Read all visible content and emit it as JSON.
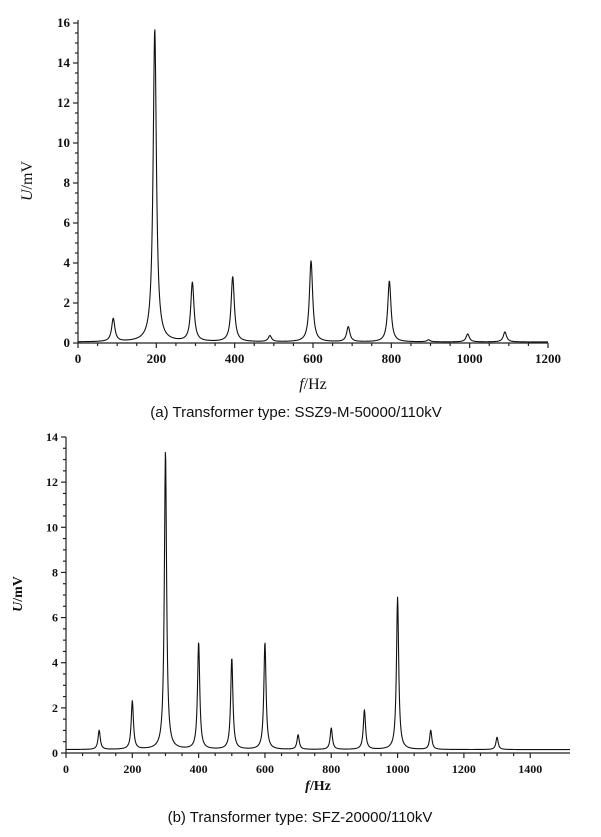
{
  "chart_data": [
    {
      "type": "line",
      "caption": "(a) Transformer type: SSZ9-M-50000/110kV",
      "xlabel_var": "f",
      "xlabel_unit": "/Hz",
      "ylabel_var": "U",
      "ylabel_unit": "/mV",
      "xlim": [
        0,
        1200
      ],
      "ylim": [
        0,
        16
      ],
      "xticks": [
        0,
        200,
        400,
        600,
        800,
        1000,
        1200
      ],
      "yticks": [
        0,
        2,
        4,
        6,
        8,
        10,
        12,
        14,
        16
      ],
      "baseline": 0.05,
      "peaks": [
        {
          "f": 90,
          "u": 1.2
        },
        {
          "f": 196,
          "u": 15.7
        },
        {
          "f": 292,
          "u": 3.0
        },
        {
          "f": 395,
          "u": 3.3
        },
        {
          "f": 490,
          "u": 0.35
        },
        {
          "f": 595,
          "u": 4.1
        },
        {
          "f": 690,
          "u": 0.8
        },
        {
          "f": 795,
          "u": 3.1
        },
        {
          "f": 895,
          "u": 0.15
        },
        {
          "f": 995,
          "u": 0.45
        },
        {
          "f": 1090,
          "u": 0.55
        }
      ]
    },
    {
      "type": "line",
      "caption": "(b) Transformer type: SFZ-20000/110kV",
      "xlabel_var": "f",
      "xlabel_unit": "/Hz",
      "ylabel_var": "U",
      "ylabel_unit": "/mV",
      "xlim": [
        0,
        1520
      ],
      "ylim": [
        0,
        14
      ],
      "xticks": [
        0,
        200,
        400,
        600,
        800,
        1000,
        1200,
        1400
      ],
      "yticks": [
        0,
        2,
        4,
        6,
        8,
        10,
        12,
        14
      ],
      "baseline": 0.15,
      "peaks": [
        {
          "f": 100,
          "u": 1.0
        },
        {
          "f": 200,
          "u": 2.3
        },
        {
          "f": 300,
          "u": 13.4
        },
        {
          "f": 400,
          "u": 4.9
        },
        {
          "f": 500,
          "u": 4.2
        },
        {
          "f": 600,
          "u": 4.9
        },
        {
          "f": 700,
          "u": 0.8
        },
        {
          "f": 800,
          "u": 1.1
        },
        {
          "f": 900,
          "u": 1.9
        },
        {
          "f": 1000,
          "u": 6.9
        },
        {
          "f": 1100,
          "u": 1.0
        },
        {
          "f": 1300,
          "u": 0.7
        }
      ]
    }
  ]
}
